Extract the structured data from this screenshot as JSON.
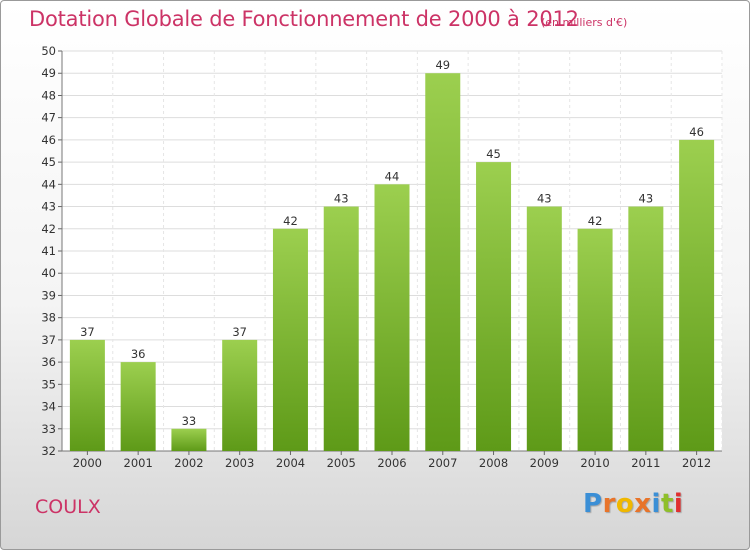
{
  "title": "Dotation Globale de Fonctionnement de 2000 à 2012",
  "subtitle": "(en milliers d'€)",
  "commune": "COULX",
  "logo": "Proxiti",
  "colors": {
    "title": "#cc3366",
    "bar_top": "#9ccf4f",
    "bar_bottom": "#5e9a18",
    "grid": "#dddddd"
  },
  "chart_data": {
    "type": "bar",
    "categories": [
      "2000",
      "2001",
      "2002",
      "2003",
      "2004",
      "2005",
      "2006",
      "2007",
      "2008",
      "2009",
      "2010",
      "2011",
      "2012"
    ],
    "values": [
      37,
      36,
      33,
      37,
      42,
      43,
      44,
      49,
      45,
      43,
      42,
      43,
      46
    ],
    "title": "Dotation Globale de Fonctionnement de 2000 à 2012",
    "ylim": [
      32,
      50
    ],
    "yticks": [
      32,
      33,
      34,
      35,
      36,
      37,
      38,
      39,
      40,
      41,
      42,
      43,
      44,
      45,
      46,
      47,
      48,
      49,
      50
    ],
    "grid": true,
    "data_labels": true
  }
}
